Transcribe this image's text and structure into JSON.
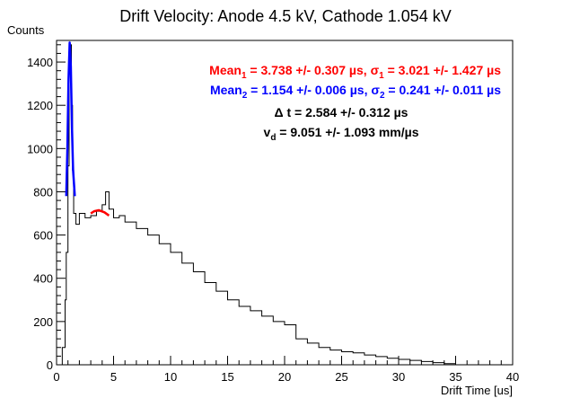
{
  "chart_data": {
    "type": "line",
    "title": "Drift Velocity: Anode 4.5 kV, Cathode 1.054 kV",
    "xlabel": "Drift Time [us]",
    "ylabel": "Counts",
    "xlim": [
      0,
      40
    ],
    "ylim": [
      0,
      1500
    ],
    "xticks": [
      0,
      5,
      10,
      15,
      20,
      25,
      30,
      35,
      40
    ],
    "yticks": [
      0,
      200,
      400,
      600,
      800,
      1000,
      1200,
      1400
    ],
    "grid": false,
    "series": [
      {
        "kind": "histogram",
        "color": "#000000",
        "points": [
          [
            0,
            0
          ],
          [
            0.25,
            0
          ],
          [
            0.5,
            80
          ],
          [
            0.75,
            300
          ],
          [
            0.85,
            520
          ],
          [
            1.0,
            920
          ],
          [
            1.1,
            1400
          ],
          [
            1.2,
            1480
          ],
          [
            1.3,
            1200
          ],
          [
            1.4,
            900
          ],
          [
            1.5,
            700
          ],
          [
            1.7,
            650
          ],
          [
            2.0,
            700
          ],
          [
            2.5,
            680
          ],
          [
            3.0,
            690
          ],
          [
            3.5,
            710
          ],
          [
            4.0,
            740
          ],
          [
            4.3,
            800
          ],
          [
            4.6,
            720
          ],
          [
            5.0,
            680
          ],
          [
            5.5,
            690
          ],
          [
            6.0,
            660
          ],
          [
            7.0,
            630
          ],
          [
            8.0,
            600
          ],
          [
            9.0,
            560
          ],
          [
            10.0,
            520
          ],
          [
            11.0,
            470
          ],
          [
            12.0,
            430
          ],
          [
            13.0,
            380
          ],
          [
            14.0,
            340
          ],
          [
            15.0,
            300
          ],
          [
            16.0,
            270
          ],
          [
            17.0,
            250
          ],
          [
            18.0,
            225
          ],
          [
            19.0,
            200
          ],
          [
            20.0,
            185
          ],
          [
            21.0,
            120
          ],
          [
            22.0,
            100
          ],
          [
            23.0,
            80
          ],
          [
            24.0,
            68
          ],
          [
            25.0,
            60
          ],
          [
            26.0,
            55
          ],
          [
            27.0,
            45
          ],
          [
            28.0,
            38
          ],
          [
            29.0,
            30
          ],
          [
            30.0,
            25
          ],
          [
            31.0,
            20
          ],
          [
            32.0,
            15
          ],
          [
            33.0,
            10
          ],
          [
            34.0,
            5
          ],
          [
            35.0,
            0
          ]
        ]
      },
      {
        "kind": "fit",
        "color": "#ff0000",
        "points": [
          [
            3.0,
            700
          ],
          [
            3.3,
            710
          ],
          [
            3.7,
            715
          ],
          [
            4.2,
            705
          ],
          [
            4.6,
            690
          ]
        ]
      },
      {
        "kind": "fit",
        "color": "#0000ff",
        "points": [
          [
            0.85,
            780
          ],
          [
            0.95,
            1000
          ],
          [
            1.05,
            1320
          ],
          [
            1.15,
            1490
          ],
          [
            1.25,
            1380
          ],
          [
            1.35,
            1100
          ],
          [
            1.45,
            900
          ],
          [
            1.6,
            780
          ]
        ]
      }
    ],
    "annotations": [
      {
        "color": "#ff0000",
        "parts": [
          "Mean",
          "1",
          " = 3.738 +/- 0.307 µs, σ",
          "1",
          " = 3.021 +/- 1.427 µs"
        ]
      },
      {
        "color": "#0000ff",
        "parts": [
          "Mean",
          "2",
          " = 1.154 +/- 0.006 µs, σ",
          "2",
          " = 0.241 +/- 0.011 µs"
        ]
      },
      {
        "color": "#000000",
        "text": "Δ t = 2.584 +/- 0.312 µs"
      },
      {
        "color": "#000000",
        "parts": [
          "v",
          "d",
          " = 9.051 +/- 1.093 mm/µs"
        ]
      }
    ]
  }
}
